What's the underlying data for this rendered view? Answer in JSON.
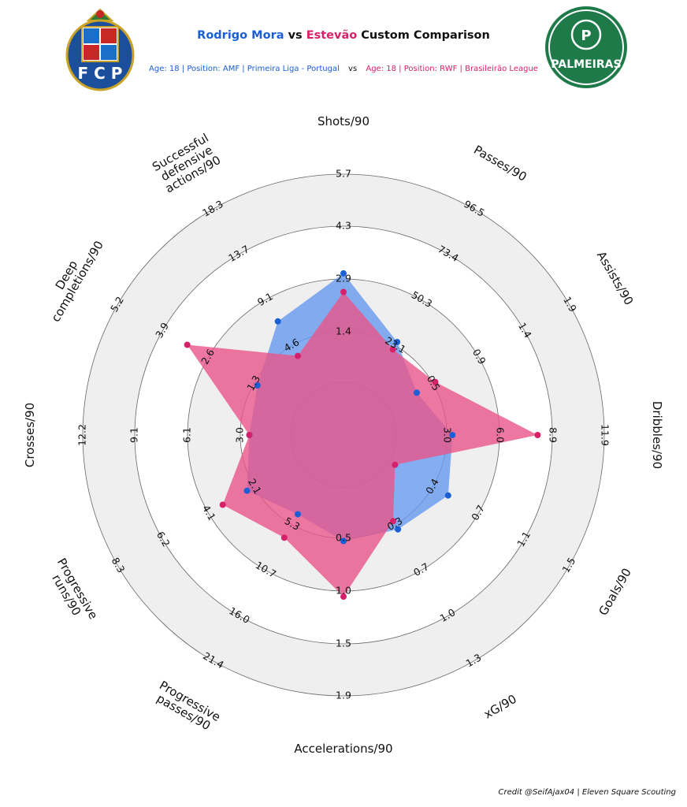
{
  "header": {
    "player1_name": "Rodrigo Mora",
    "vs_word": "vs",
    "player2_name": "Estevão",
    "title_suffix": "Custom Comparison",
    "player1_info": "Age: 18 | Position: AMF | Primeira Liga - Portugal",
    "player2_info": "Age: 18 | Position: RWF | Brasileirão League",
    "info_vs": "vs"
  },
  "logos": {
    "left": {
      "text": "F C P",
      "icon": "fc-porto-crest"
    },
    "right": {
      "text": "PALMEIRAS",
      "icon": "palmeiras-crest"
    }
  },
  "colors": {
    "player1": "#1a5fd6",
    "player1_fill": "#6699ee",
    "player2": "#d6206a",
    "player2_fill": "#e8558a",
    "ring_fill": "#efefef",
    "ring_stroke": "#666666"
  },
  "chart_data": {
    "type": "radar",
    "series": [
      {
        "name": "Rodrigo Mora",
        "values": [
          3.0,
          26.0,
          0.3,
          3.3,
          0.5,
          0.36,
          0.5,
          4.1,
          2.4,
          2.5,
          1.2,
          7.0
        ]
      },
      {
        "name": "Estevão",
        "values": [
          2.5,
          22.0,
          0.5,
          8.1,
          0.05,
          0.3,
          1.0,
          6.9,
          3.5,
          2.5,
          3.2,
          3.5
        ]
      }
    ],
    "axes": [
      {
        "label": "Shots/90",
        "ticks": [
          "1.4",
          "2.9",
          "4.3",
          "5.7"
        ]
      },
      {
        "label": "Passes/90",
        "ticks": [
          "23.1",
          "50.3",
          "73.4",
          "96.5"
        ]
      },
      {
        "label": "Assists/90",
        "ticks": [
          "0.5",
          "0.9",
          "1.4",
          "1.9"
        ]
      },
      {
        "label": "Dribbles/90",
        "ticks": [
          "3.0",
          "6.0",
          "8.9",
          "11.9"
        ]
      },
      {
        "label": "Goals/90",
        "ticks": [
          "0.4",
          "0.7",
          "1.1",
          "1.5"
        ]
      },
      {
        "label": "xG/90",
        "ticks": [
          "0.3",
          "0.7",
          "1.0",
          "1.3"
        ]
      },
      {
        "label": "Accelerations/90",
        "ticks": [
          "0.5",
          "1.0",
          "1.5",
          "1.9"
        ]
      },
      {
        "label": "Progressive passes/90",
        "ticks": [
          "5.3",
          "10.7",
          "16.0",
          "21.4"
        ]
      },
      {
        "label": "Progressive runs/90",
        "ticks": [
          "2.1",
          "4.1",
          "6.2",
          "8.3"
        ]
      },
      {
        "label": "Crosses/90",
        "ticks": [
          "3.0",
          "6.1",
          "9.1",
          "12.2"
        ]
      },
      {
        "label": "Deep completions/90",
        "ticks": [
          "1.3",
          "2.6",
          "3.9",
          "5.2"
        ]
      },
      {
        "label": "Successful defensive actions/90",
        "ticks": [
          "4.6",
          "9.1",
          "13.7",
          "18.3"
        ]
      }
    ]
  },
  "credit": "Credit @SeifAjax04 | Eleven Square Scouting"
}
